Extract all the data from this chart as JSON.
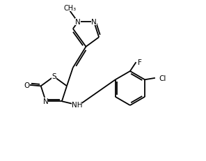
{
  "background_color": "#ffffff",
  "line_color": "#000000",
  "line_width": 1.3,
  "font_size": 7.5,
  "xlim": [
    0,
    10
  ],
  "ylim": [
    0,
    8
  ],
  "figsize": [
    2.96,
    2.32
  ],
  "dpi": 100
}
